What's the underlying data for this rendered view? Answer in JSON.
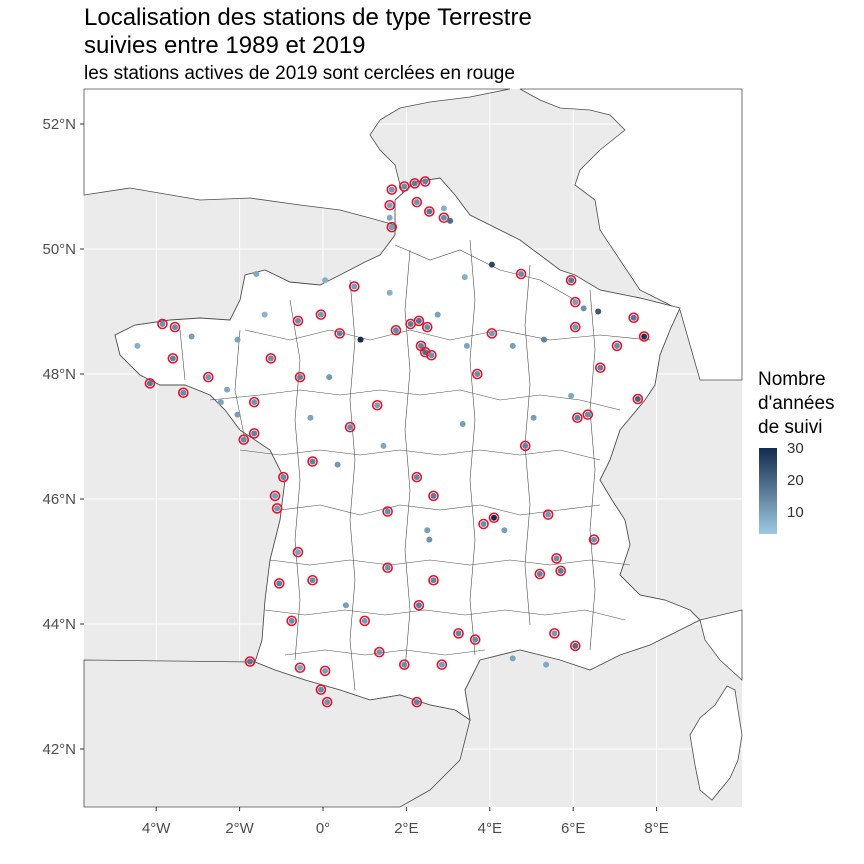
{
  "title_line1": "Localisation des stations de type Terrestre",
  "title_line2": "suivies entre 1989 et 2019",
  "subtitle": "les stations actives de 2019 sont cerclées en rouge",
  "legend": {
    "title_lines": [
      "Nombre",
      "d'années",
      "de suivi"
    ],
    "ticks": [
      "30",
      "20",
      "10"
    ],
    "color_low": "#9ecae1",
    "color_high": "#132b4e"
  },
  "colors": {
    "panel_bg": "#ebebeb",
    "land": "#ffffff",
    "border": "#4d4d4d",
    "active_ring": "#e8102a"
  },
  "chart_data": {
    "type": "scatter",
    "title": "Localisation des stations de type Terrestre suivies entre 1989 et 2019",
    "subtitle": "les stations actives de 2019 sont cerclées en rouge",
    "xlim": [
      -5.6,
      9.8
    ],
    "ylim": [
      41.0,
      52.5
    ],
    "x_ticks": [
      "4°W",
      "2°W",
      "0°",
      "2°E",
      "4°E",
      "6°E",
      "8°E"
    ],
    "y_ticks": [
      "52°N",
      "50°N",
      "48°N",
      "46°N",
      "44°N",
      "42°N"
    ],
    "grid": true,
    "legend_position": "right",
    "color_scale": {
      "min": 1,
      "max": 30
    },
    "stations": [
      {
        "lon": 1.65,
        "lat": 50.95,
        "years": 10,
        "active": true
      },
      {
        "lon": 1.95,
        "lat": 51.0,
        "years": 12,
        "active": true
      },
      {
        "lon": 2.2,
        "lat": 51.05,
        "years": 15,
        "active": true
      },
      {
        "lon": 2.45,
        "lat": 51.08,
        "years": 14,
        "active": true
      },
      {
        "lon": 1.6,
        "lat": 50.7,
        "years": 8,
        "active": true
      },
      {
        "lon": 1.65,
        "lat": 50.35,
        "years": 9,
        "active": true
      },
      {
        "lon": 2.25,
        "lat": 50.75,
        "years": 11,
        "active": true
      },
      {
        "lon": 2.55,
        "lat": 50.6,
        "years": 16,
        "active": true
      },
      {
        "lon": 2.9,
        "lat": 50.5,
        "years": 12,
        "active": true
      },
      {
        "lon": 3.05,
        "lat": 50.45,
        "years": 18,
        "active": false
      },
      {
        "lon": 2.9,
        "lat": 50.65,
        "years": 6,
        "active": false
      },
      {
        "lon": 1.6,
        "lat": 50.5,
        "years": 7,
        "active": false
      },
      {
        "lon": 0.05,
        "lat": 49.5,
        "years": 6,
        "active": false
      },
      {
        "lon": 0.75,
        "lat": 49.4,
        "years": 9,
        "active": true
      },
      {
        "lon": -1.6,
        "lat": 49.6,
        "years": 7,
        "active": false
      },
      {
        "lon": -1.4,
        "lat": 48.95,
        "years": 5,
        "active": false
      },
      {
        "lon": -0.6,
        "lat": 48.85,
        "years": 12,
        "active": true
      },
      {
        "lon": -0.05,
        "lat": 48.95,
        "years": 10,
        "active": true
      },
      {
        "lon": 0.4,
        "lat": 48.65,
        "years": 14,
        "active": true
      },
      {
        "lon": 0.9,
        "lat": 48.55,
        "years": 30,
        "active": false
      },
      {
        "lon": 1.6,
        "lat": 49.3,
        "years": 6,
        "active": false
      },
      {
        "lon": 1.75,
        "lat": 48.7,
        "years": 13,
        "active": true
      },
      {
        "lon": 2.1,
        "lat": 48.8,
        "years": 15,
        "active": true
      },
      {
        "lon": 2.3,
        "lat": 48.85,
        "years": 17,
        "active": true
      },
      {
        "lon": 2.5,
        "lat": 48.75,
        "years": 12,
        "active": true
      },
      {
        "lon": 2.35,
        "lat": 48.45,
        "years": 14,
        "active": true
      },
      {
        "lon": 2.45,
        "lat": 48.35,
        "years": 18,
        "active": true
      },
      {
        "lon": 2.6,
        "lat": 48.3,
        "years": 11,
        "active": true
      },
      {
        "lon": 2.75,
        "lat": 48.95,
        "years": 8,
        "active": false
      },
      {
        "lon": 3.4,
        "lat": 49.55,
        "years": 6,
        "active": false
      },
      {
        "lon": 4.05,
        "lat": 49.75,
        "years": 25,
        "active": false
      },
      {
        "lon": 4.75,
        "lat": 49.6,
        "years": 12,
        "active": true
      },
      {
        "lon": 4.05,
        "lat": 48.65,
        "years": 10,
        "active": true
      },
      {
        "lon": 3.45,
        "lat": 48.45,
        "years": 8,
        "active": false
      },
      {
        "lon": 3.7,
        "lat": 48.0,
        "years": 12,
        "active": true
      },
      {
        "lon": 4.55,
        "lat": 48.45,
        "years": 9,
        "active": false
      },
      {
        "lon": 5.3,
        "lat": 48.55,
        "years": 14,
        "active": false
      },
      {
        "lon": 5.95,
        "lat": 49.5,
        "years": 16,
        "active": true
      },
      {
        "lon": 6.05,
        "lat": 49.15,
        "years": 9,
        "active": true
      },
      {
        "lon": 6.25,
        "lat": 49.05,
        "years": 11,
        "active": false
      },
      {
        "lon": 6.6,
        "lat": 49.0,
        "years": 22,
        "active": false
      },
      {
        "lon": 7.45,
        "lat": 48.9,
        "years": 16,
        "active": true
      },
      {
        "lon": 7.7,
        "lat": 48.6,
        "years": 28,
        "active": true
      },
      {
        "lon": 7.05,
        "lat": 48.45,
        "years": 12,
        "active": true
      },
      {
        "lon": 6.65,
        "lat": 48.1,
        "years": 14,
        "active": true
      },
      {
        "lon": 7.55,
        "lat": 47.6,
        "years": 20,
        "active": true
      },
      {
        "lon": 6.05,
        "lat": 48.75,
        "years": 10,
        "active": true
      },
      {
        "lon": 6.35,
        "lat": 47.35,
        "years": 12,
        "active": true
      },
      {
        "lon": 6.1,
        "lat": 47.3,
        "years": 14,
        "active": true
      },
      {
        "lon": 5.05,
        "lat": 47.3,
        "years": 9,
        "active": false
      },
      {
        "lon": 5.95,
        "lat": 47.65,
        "years": 7,
        "active": false
      },
      {
        "lon": 4.85,
        "lat": 46.85,
        "years": 14,
        "active": true
      },
      {
        "lon": 3.35,
        "lat": 47.2,
        "years": 9,
        "active": false
      },
      {
        "lon": 4.1,
        "lat": 45.7,
        "years": 30,
        "active": true
      },
      {
        "lon": 3.85,
        "lat": 45.6,
        "years": 12,
        "active": true
      },
      {
        "lon": 4.35,
        "lat": 45.5,
        "years": 9,
        "active": false
      },
      {
        "lon": 5.4,
        "lat": 45.75,
        "years": 10,
        "active": true
      },
      {
        "lon": 5.6,
        "lat": 45.05,
        "years": 12,
        "active": true
      },
      {
        "lon": 5.7,
        "lat": 44.85,
        "years": 15,
        "active": true
      },
      {
        "lon": 5.2,
        "lat": 44.8,
        "years": 14,
        "active": true
      },
      {
        "lon": 6.5,
        "lat": 45.35,
        "years": 11,
        "active": true
      },
      {
        "lon": 5.55,
        "lat": 43.85,
        "years": 10,
        "active": true
      },
      {
        "lon": 6.05,
        "lat": 43.65,
        "years": 18,
        "active": true
      },
      {
        "lon": 5.35,
        "lat": 43.35,
        "years": 7,
        "active": false
      },
      {
        "lon": 4.55,
        "lat": 43.45,
        "years": 8,
        "active": false
      },
      {
        "lon": 3.65,
        "lat": 43.75,
        "years": 12,
        "active": true
      },
      {
        "lon": 3.25,
        "lat": 43.85,
        "years": 13,
        "active": true
      },
      {
        "lon": 2.85,
        "lat": 43.35,
        "years": 9,
        "active": true
      },
      {
        "lon": 2.25,
        "lat": 42.75,
        "years": 14,
        "active": true
      },
      {
        "lon": 1.95,
        "lat": 43.35,
        "years": 12,
        "active": true
      },
      {
        "lon": 1.35,
        "lat": 43.55,
        "years": 10,
        "active": true
      },
      {
        "lon": 0.05,
        "lat": 43.25,
        "years": 9,
        "active": true
      },
      {
        "lon": -0.55,
        "lat": 43.3,
        "years": 8,
        "active": true
      },
      {
        "lon": -0.05,
        "lat": 42.95,
        "years": 12,
        "active": true
      },
      {
        "lon": 0.1,
        "lat": 42.75,
        "years": 11,
        "active": true
      },
      {
        "lon": -1.75,
        "lat": 43.4,
        "years": 16,
        "active": true
      },
      {
        "lon": -0.75,
        "lat": 44.05,
        "years": 12,
        "active": true
      },
      {
        "lon": 1.0,
        "lat": 44.05,
        "years": 10,
        "active": true
      },
      {
        "lon": 0.55,
        "lat": 44.3,
        "years": 9,
        "active": false
      },
      {
        "lon": 2.3,
        "lat": 44.3,
        "years": 15,
        "active": true
      },
      {
        "lon": 2.65,
        "lat": 44.7,
        "years": 13,
        "active": true
      },
      {
        "lon": 1.55,
        "lat": 44.9,
        "years": 11,
        "active": true
      },
      {
        "lon": -1.05,
        "lat": 44.65,
        "years": 14,
        "active": true
      },
      {
        "lon": -0.25,
        "lat": 44.7,
        "years": 12,
        "active": true
      },
      {
        "lon": -0.6,
        "lat": 45.15,
        "years": 8,
        "active": true
      },
      {
        "lon": -1.1,
        "lat": 45.85,
        "years": 10,
        "active": true
      },
      {
        "lon": -0.95,
        "lat": 46.35,
        "years": 12,
        "active": true
      },
      {
        "lon": -1.15,
        "lat": 46.05,
        "years": 9,
        "active": true
      },
      {
        "lon": -0.25,
        "lat": 46.6,
        "years": 14,
        "active": true
      },
      {
        "lon": 0.35,
        "lat": 46.55,
        "years": 10,
        "active": false
      },
      {
        "lon": 1.45,
        "lat": 46.85,
        "years": 7,
        "active": false
      },
      {
        "lon": 1.55,
        "lat": 45.8,
        "years": 12,
        "active": true
      },
      {
        "lon": 2.25,
        "lat": 46.35,
        "years": 13,
        "active": true
      },
      {
        "lon": 2.65,
        "lat": 46.05,
        "years": 15,
        "active": true
      },
      {
        "lon": 2.5,
        "lat": 45.5,
        "years": 9,
        "active": false
      },
      {
        "lon": 2.55,
        "lat": 45.35,
        "years": 11,
        "active": false
      },
      {
        "lon": -1.65,
        "lat": 47.05,
        "years": 14,
        "active": true
      },
      {
        "lon": -1.9,
        "lat": 46.95,
        "years": 12,
        "active": true
      },
      {
        "lon": -2.05,
        "lat": 47.35,
        "years": 9,
        "active": false
      },
      {
        "lon": -1.65,
        "lat": 47.55,
        "years": 11,
        "active": true
      },
      {
        "lon": -2.45,
        "lat": 47.55,
        "years": 8,
        "active": false
      },
      {
        "lon": -3.35,
        "lat": 47.7,
        "years": 12,
        "active": true
      },
      {
        "lon": -2.75,
        "lat": 47.95,
        "years": 10,
        "active": true
      },
      {
        "lon": -3.6,
        "lat": 48.25,
        "years": 14,
        "active": true
      },
      {
        "lon": -4.15,
        "lat": 47.85,
        "years": 16,
        "active": true
      },
      {
        "lon": -3.15,
        "lat": 48.6,
        "years": 9,
        "active": false
      },
      {
        "lon": -3.55,
        "lat": 48.75,
        "years": 12,
        "active": true
      },
      {
        "lon": -3.85,
        "lat": 48.8,
        "years": 11,
        "active": true
      },
      {
        "lon": -4.45,
        "lat": 48.45,
        "years": 6,
        "active": false
      },
      {
        "lon": -2.05,
        "lat": 48.55,
        "years": 8,
        "active": false
      },
      {
        "lon": -1.25,
        "lat": 48.25,
        "years": 12,
        "active": true
      },
      {
        "lon": -0.55,
        "lat": 47.95,
        "years": 14,
        "active": true
      },
      {
        "lon": 0.15,
        "lat": 47.95,
        "years": 10,
        "active": false
      },
      {
        "lon": 1.3,
        "lat": 47.5,
        "years": 9,
        "active": true
      },
      {
        "lon": 0.65,
        "lat": 47.15,
        "years": 12,
        "active": true
      },
      {
        "lon": -0.3,
        "lat": 47.3,
        "years": 8,
        "active": false
      },
      {
        "lon": -2.3,
        "lat": 47.75,
        "years": 7,
        "active": false
      }
    ]
  }
}
